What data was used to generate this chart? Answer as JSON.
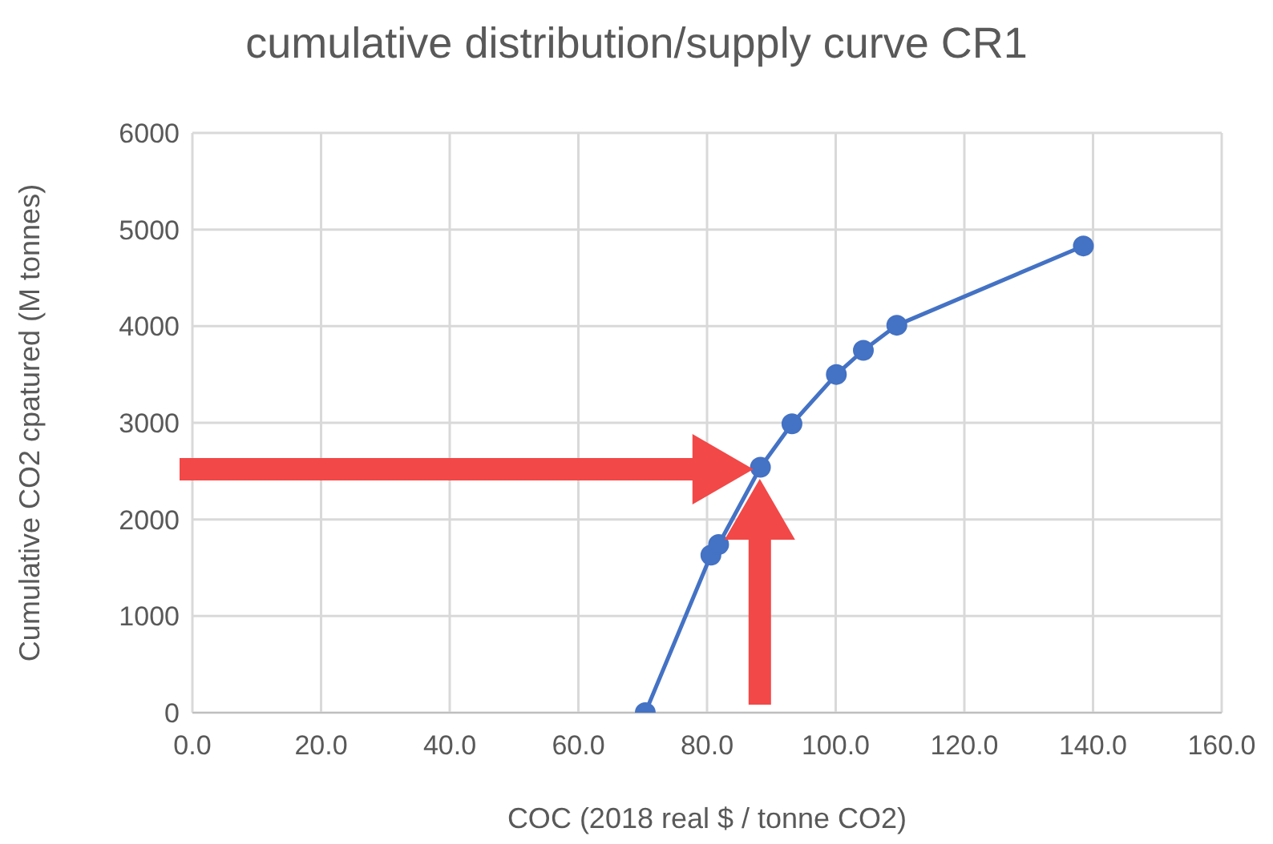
{
  "chart_data": {
    "type": "line",
    "title": "cumulative distribution/supply curve CR1",
    "xlabel": "COC (2018 real $ / tonne CO2)",
    "ylabel": "Cumulative CO2 cpatured (M tonnes)",
    "x": [
      70.4,
      80.6,
      81.8,
      88.3,
      93.2,
      100.1,
      104.3,
      109.5,
      138.5
    ],
    "series": [
      {
        "color": "#4472c4",
        "values": [
          0,
          1630,
          1740,
          2540,
          2990,
          3500,
          3750,
          4010,
          4830
        ]
      }
    ],
    "xlim": [
      0,
      160
    ],
    "xticks": [
      {
        "value": 0,
        "label": "0.0"
      },
      {
        "value": 20,
        "label": "20.0"
      },
      {
        "value": 40,
        "label": "40.0"
      },
      {
        "value": 60,
        "label": "60.0"
      },
      {
        "value": 80,
        "label": "80.0"
      },
      {
        "value": 100,
        "label": "100.0"
      },
      {
        "value": 120,
        "label": "120.0"
      },
      {
        "value": 140,
        "label": "140.0"
      },
      {
        "value": 160,
        "label": "160.0"
      }
    ],
    "ylim": [
      0,
      6000
    ],
    "yticks": [
      0,
      1000,
      2000,
      3000,
      4000,
      5000,
      6000
    ],
    "grid": true,
    "marker": "circle",
    "line_style": "solid"
  }
}
